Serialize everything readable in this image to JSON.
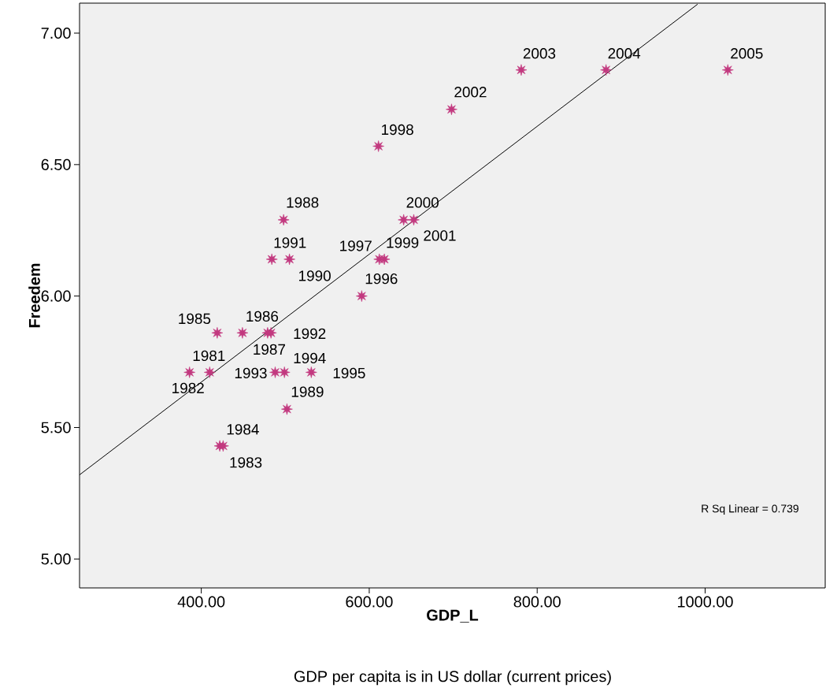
{
  "chart_data": {
    "type": "scatter",
    "xlabel": "GDP_L",
    "ylabel": "Freedem",
    "xlim": [
      255,
      1143
    ],
    "ylim": [
      4.89,
      7.114
    ],
    "xticks": [
      {
        "value": 400,
        "label": "400.00"
      },
      {
        "value": 600,
        "label": "600.00"
      },
      {
        "value": 800,
        "label": "800.00"
      },
      {
        "value": 1000,
        "label": "1000.00"
      }
    ],
    "yticks": [
      {
        "value": 5,
        "label": "5.00"
      },
      {
        "value": 5.5,
        "label": "5.50"
      },
      {
        "value": 6,
        "label": "6.00"
      },
      {
        "value": 6.5,
        "label": "6.50"
      },
      {
        "value": 7,
        "label": "7.00"
      }
    ],
    "series": [
      {
        "type": "scatter",
        "color": "#c2397f",
        "marker": "star",
        "x": [
          410,
          386,
          422,
          426,
          419,
          449,
          479,
          498,
          502,
          505,
          484,
          483,
          488,
          499,
          531,
          591,
          612,
          611,
          618,
          641,
          653,
          698,
          781,
          882,
          1027
        ],
        "values": [
          5.71,
          5.71,
          5.43,
          5.43,
          5.86,
          5.86,
          5.86,
          6.29,
          5.57,
          6.14,
          6.14,
          5.86,
          5.71,
          5.71,
          5.71,
          6.0,
          6.14,
          6.57,
          6.14,
          6.29,
          6.29,
          6.71,
          6.86,
          6.86,
          6.86
        ]
      },
      {
        "type": "line",
        "color": "#000000",
        "marker": "none",
        "x": [
          255,
          991
        ],
        "values": [
          5.32,
          7.11
        ]
      }
    ],
    "annotations": [
      {
        "text": "1981",
        "x": 410,
        "y": 5.71
      },
      {
        "text": "1982",
        "x": 386,
        "y": 5.71
      },
      {
        "text": "1983",
        "x": 422,
        "y": 5.43
      },
      {
        "text": "1984",
        "x": 426,
        "y": 5.43
      },
      {
        "text": "1985",
        "x": 419,
        "y": 5.86
      },
      {
        "text": "1986",
        "x": 449,
        "y": 5.86
      },
      {
        "text": "1987",
        "x": 479,
        "y": 5.86
      },
      {
        "text": "1988",
        "x": 498,
        "y": 6.29
      },
      {
        "text": "1989",
        "x": 502,
        "y": 5.57
      },
      {
        "text": "1990",
        "x": 505,
        "y": 6.14
      },
      {
        "text": "1991",
        "x": 484,
        "y": 6.14
      },
      {
        "text": "1992",
        "x": 483,
        "y": 5.86
      },
      {
        "text": "1993",
        "x": 488,
        "y": 5.71
      },
      {
        "text": "1994",
        "x": 499,
        "y": 5.71
      },
      {
        "text": "1995",
        "x": 531,
        "y": 5.71
      },
      {
        "text": "1996",
        "x": 591,
        "y": 6.0
      },
      {
        "text": "1997",
        "x": 612,
        "y": 6.14
      },
      {
        "text": "1998",
        "x": 611,
        "y": 6.57
      },
      {
        "text": "1999",
        "x": 618,
        "y": 6.14
      },
      {
        "text": "2000",
        "x": 641,
        "y": 6.29
      },
      {
        "text": "2001",
        "x": 653,
        "y": 6.29
      },
      {
        "text": "2002",
        "x": 698,
        "y": 6.71
      },
      {
        "text": "2003",
        "x": 781,
        "y": 6.86
      },
      {
        "text": "2004",
        "x": 882,
        "y": 6.86
      },
      {
        "text": "2005",
        "x": 1027,
        "y": 6.86
      },
      "R Sq Linear = 0.739",
      "GDP per capita is in US dollar (current prices)"
    ]
  }
}
